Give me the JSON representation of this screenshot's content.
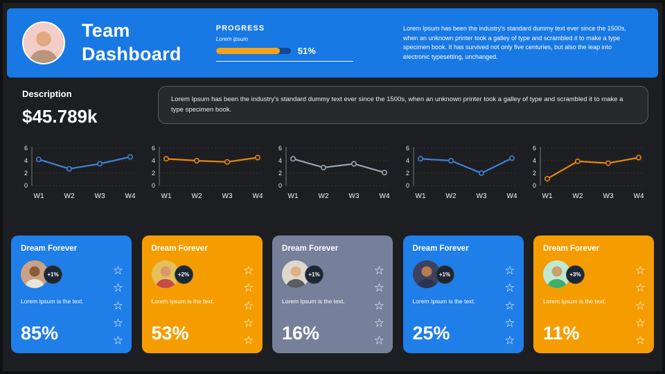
{
  "header": {
    "title_lines": [
      "Team",
      "Dashboard"
    ],
    "avatar": {
      "bg": "#f3cdc8",
      "skin": "#e2a87f",
      "shirt": "#b9977d"
    },
    "progress": {
      "label": "PROGRESS",
      "sublabel": "Lorem ipsum",
      "value_label": "51%"
    },
    "paragraph": "Lorem Ipsum has been the industry's standard dummy text ever since the 1500s, when an unknown printer took a galley of type and scrambled it to make a type specimen book. It has survived not only five centuries, but also the leap into electronic typesetting, unchanged."
  },
  "description": {
    "label": "Description",
    "value": "$45.789k",
    "note": "Lorem Ipsum has been the industry's standard dummy text ever since the 1500s, when an unknown printer took a galley of type and scrambled it to make a type specimen book."
  },
  "colors": {
    "header_blue": "#1878e4",
    "card_blue": "#1f7ee8",
    "card_orange": "#f59d00",
    "card_gray": "#76809b",
    "badge_bg": "#1c2733",
    "progress_fill": "#f5a31c"
  },
  "icons": {
    "star": "☆"
  },
  "chart_data": [
    {
      "type": "line",
      "categories": [
        "W1",
        "W2",
        "W3",
        "W4"
      ],
      "values": [
        4.2,
        2.7,
        3.5,
        4.6
      ],
      "color": "#3e82d8",
      "ylim": [
        0,
        6
      ],
      "yticks": [
        0,
        2,
        4,
        6
      ],
      "grid": true,
      "legend": false
    },
    {
      "type": "line",
      "categories": [
        "W1",
        "W2",
        "W3",
        "W4"
      ],
      "values": [
        4.3,
        4.0,
        3.8,
        4.5
      ],
      "color": "#e8860d",
      "ylim": [
        0,
        6
      ],
      "yticks": [
        0,
        2,
        4,
        6
      ],
      "grid": true,
      "legend": false
    },
    {
      "type": "line",
      "categories": [
        "W1",
        "W2",
        "W3",
        "W4"
      ],
      "values": [
        4.3,
        2.9,
        3.5,
        2.1
      ],
      "color": "#9aa3b2",
      "ylim": [
        0,
        6
      ],
      "yticks": [
        0,
        2,
        4,
        6
      ],
      "grid": true,
      "legend": false
    },
    {
      "type": "line",
      "categories": [
        "W1",
        "W2",
        "W3",
        "W4"
      ],
      "values": [
        4.3,
        4.0,
        2.0,
        4.4
      ],
      "color": "#3e82d8",
      "ylim": [
        0,
        6
      ],
      "yticks": [
        0,
        2,
        4,
        6
      ],
      "grid": true,
      "legend": false
    },
    {
      "type": "line",
      "categories": [
        "W1",
        "W2",
        "W3",
        "W4"
      ],
      "values": [
        1.1,
        3.9,
        3.6,
        4.5
      ],
      "color": "#e8860d",
      "ylim": [
        0,
        6
      ],
      "yticks": [
        0,
        2,
        4,
        6
      ],
      "grid": true,
      "legend": false
    }
  ],
  "cards": [
    {
      "title": "Dream Forever",
      "badge": "+1%",
      "text": "Lorem Ipsum is the text.",
      "percent": "85%",
      "bg": "#1f7ee8",
      "stars": 5,
      "avatar": {
        "bg": "#caa287",
        "skin": "#8a5c3b",
        "shirt": "#e8e4da"
      }
    },
    {
      "title": "Dream Forever",
      "badge": "+2%",
      "text": "Lorem Ipsum is the text.",
      "percent": "53%",
      "bg": "#f59d00",
      "stars": 5,
      "avatar": {
        "bg": "#e5c05a",
        "skin": "#d89a6a",
        "shirt": "#c84b4b"
      }
    },
    {
      "title": "Dream Forever",
      "badge": "+1%",
      "text": "Lorem Ipsum is the text.",
      "percent": "16%",
      "bg": "#76809b",
      "stars": 5,
      "avatar": {
        "bg": "#ded8cc",
        "skin": "#e0b08a",
        "shirt": "#5a5f66"
      }
    },
    {
      "title": "Dream Forever",
      "badge": "+1%",
      "text": "Lorem Ipsum is the text.",
      "percent": "25%",
      "bg": "#1f7ee8",
      "stars": 5,
      "avatar": {
        "bg": "#3c415f",
        "skin": "#b57b52",
        "shirt": "#2b3350"
      }
    },
    {
      "title": "Dream Forever",
      "badge": "+3%",
      "text": "Lorem Ipsum is the text.",
      "percent": "11%",
      "bg": "#f59d00",
      "stars": 5,
      "avatar": {
        "bg": "#bfe8d2",
        "skin": "#caa06e",
        "shirt": "#3fae6a"
      }
    }
  ]
}
